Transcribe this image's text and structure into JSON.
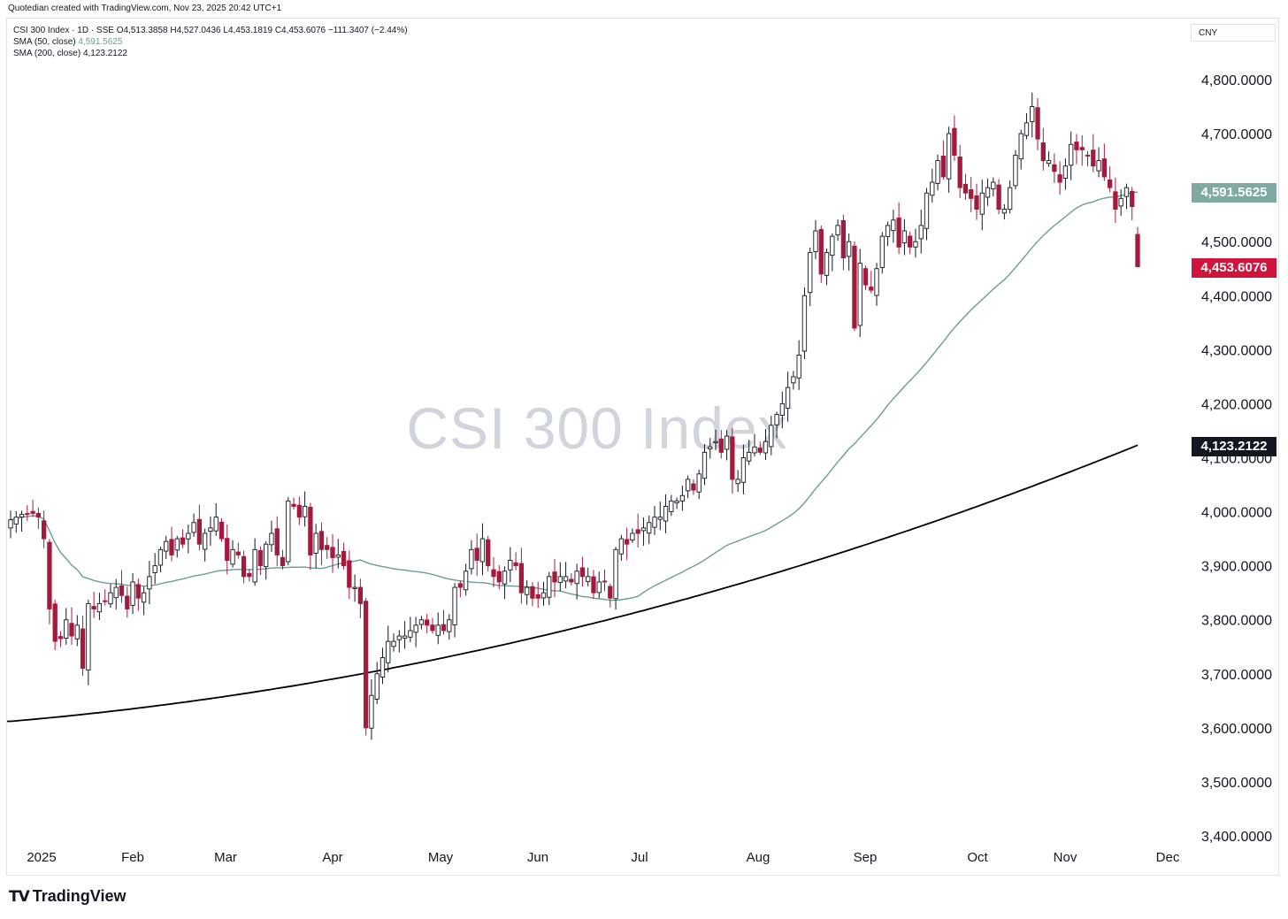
{
  "credit": "Quotedian created with TradingView.com, Nov 23, 2025 20:42 UTC+1",
  "legend": {
    "symbol": "CSI 300 Index · 1D · SSE",
    "open": "O4,513.3858",
    "high": "H4,527.0436",
    "low": "L4,453.1819",
    "close": "C4,453.6076",
    "change": "−111.3407 (−2.44%)",
    "sma50_label": "SMA (50, close)",
    "sma50_value": "4,591.5625",
    "sma200_label": "SMA (200, close)",
    "sma200_value": "4,123.2122"
  },
  "currency": "CNY",
  "watermark": "CSI 300 Index",
  "brand": "TradingView",
  "price_tags": {
    "sma50": {
      "text": "4,591.5625",
      "color": "#7fa9a3"
    },
    "last": {
      "text": "4,453.6076",
      "color": "#d1143c"
    },
    "sma200": {
      "text": "4,123.2122",
      "color": "#131722"
    }
  },
  "colors": {
    "up": "#ffffff",
    "up_border": "#131722",
    "down": "#a51a3c",
    "sma50": "#6b9c96",
    "sma200": "#000000"
  },
  "chart_data": {
    "type": "candlestick",
    "title": "CSI 300 Index",
    "ylim": [
      3400,
      4800
    ],
    "y_ticks": [
      "4,800.0000",
      "4,700.0000",
      "4,600.0000",
      "4,500.0000",
      "4,400.0000",
      "4,300.0000",
      "4,200.0000",
      "4,100.0000",
      "4,000.0000",
      "3,900.0000",
      "3,800.0000",
      "3,700.0000",
      "3,600.0000",
      "3,500.0000",
      "3,400.0000"
    ],
    "x_ticks": [
      "2025",
      "Feb",
      "Mar",
      "Apr",
      "May",
      "Jun",
      "Jul",
      "Aug",
      "Sep",
      "Oct",
      "Nov",
      "Dec"
    ],
    "closes": [
      3985,
      3990,
      3995,
      3995,
      3997,
      3990,
      3950,
      3820,
      3760,
      3765,
      3800,
      3770,
      3790,
      3710,
      3830,
      3820,
      3830,
      3835,
      3850,
      3860,
      3845,
      3820,
      3870,
      3840,
      3850,
      3880,
      3900,
      3930,
      3945,
      3920,
      3950,
      3940,
      3960,
      3980,
      3940,
      3960,
      3970,
      3990,
      3950,
      3910,
      3930,
      3920,
      3880,
      3880,
      3930,
      3900,
      3940,
      3960,
      3920,
      3900,
      4020,
      4010,
      3990,
      4010,
      3920,
      3960,
      3930,
      3930,
      3915,
      3920,
      3900,
      3860,
      3860,
      3830,
      3600,
      3660,
      3700,
      3730,
      3760,
      3760,
      3770,
      3770,
      3780,
      3790,
      3800,
      3790,
      3780,
      3790,
      3780,
      3800,
      3860,
      3860,
      3890,
      3930,
      3910,
      3950,
      3900,
      3880,
      3870,
      3890,
      3910,
      3900,
      3850,
      3860,
      3840,
      3840,
      3850,
      3880,
      3870,
      3880,
      3880,
      3870,
      3890,
      3880,
      3880,
      3850,
      3870,
      3870,
      3840,
      3930,
      3950,
      3940,
      3960,
      3960,
      3970,
      3980,
      3990,
      3990,
      4010,
      4020,
      4020,
      4030,
      4060,
      4040,
      4070,
      4110,
      4120,
      4130,
      4110,
      4140,
      4060,
      4060,
      4100,
      4110,
      4120,
      4110,
      4130,
      4160,
      4180,
      4200,
      4230,
      4250,
      4290,
      4400,
      4480,
      4520,
      4440,
      4480,
      4510,
      4530,
      4470,
      4500,
      4340,
      4460,
      4420,
      4410,
      4450,
      4510,
      4530,
      4540,
      4490,
      4520,
      4490,
      4500,
      4530,
      4590,
      4610,
      4650,
      4620,
      4700,
      4660,
      4600,
      4590,
      4580,
      4560,
      4590,
      4600,
      4610,
      4560,
      4560,
      4600,
      4660,
      4700,
      4720,
      4750,
      4690,
      4650,
      4650,
      4630,
      4610,
      4640,
      4680,
      4670,
      4670,
      4660,
      4640,
      4650,
      4620,
      4600,
      4560,
      4580,
      4600,
      4565,
      4454
    ],
    "sma50_final": 4591.5625,
    "sma200_final": 4123.2122,
    "last": {
      "open": 4513.3858,
      "high": 4527.0436,
      "low": 4453.1819,
      "close": 4453.6076
    }
  }
}
